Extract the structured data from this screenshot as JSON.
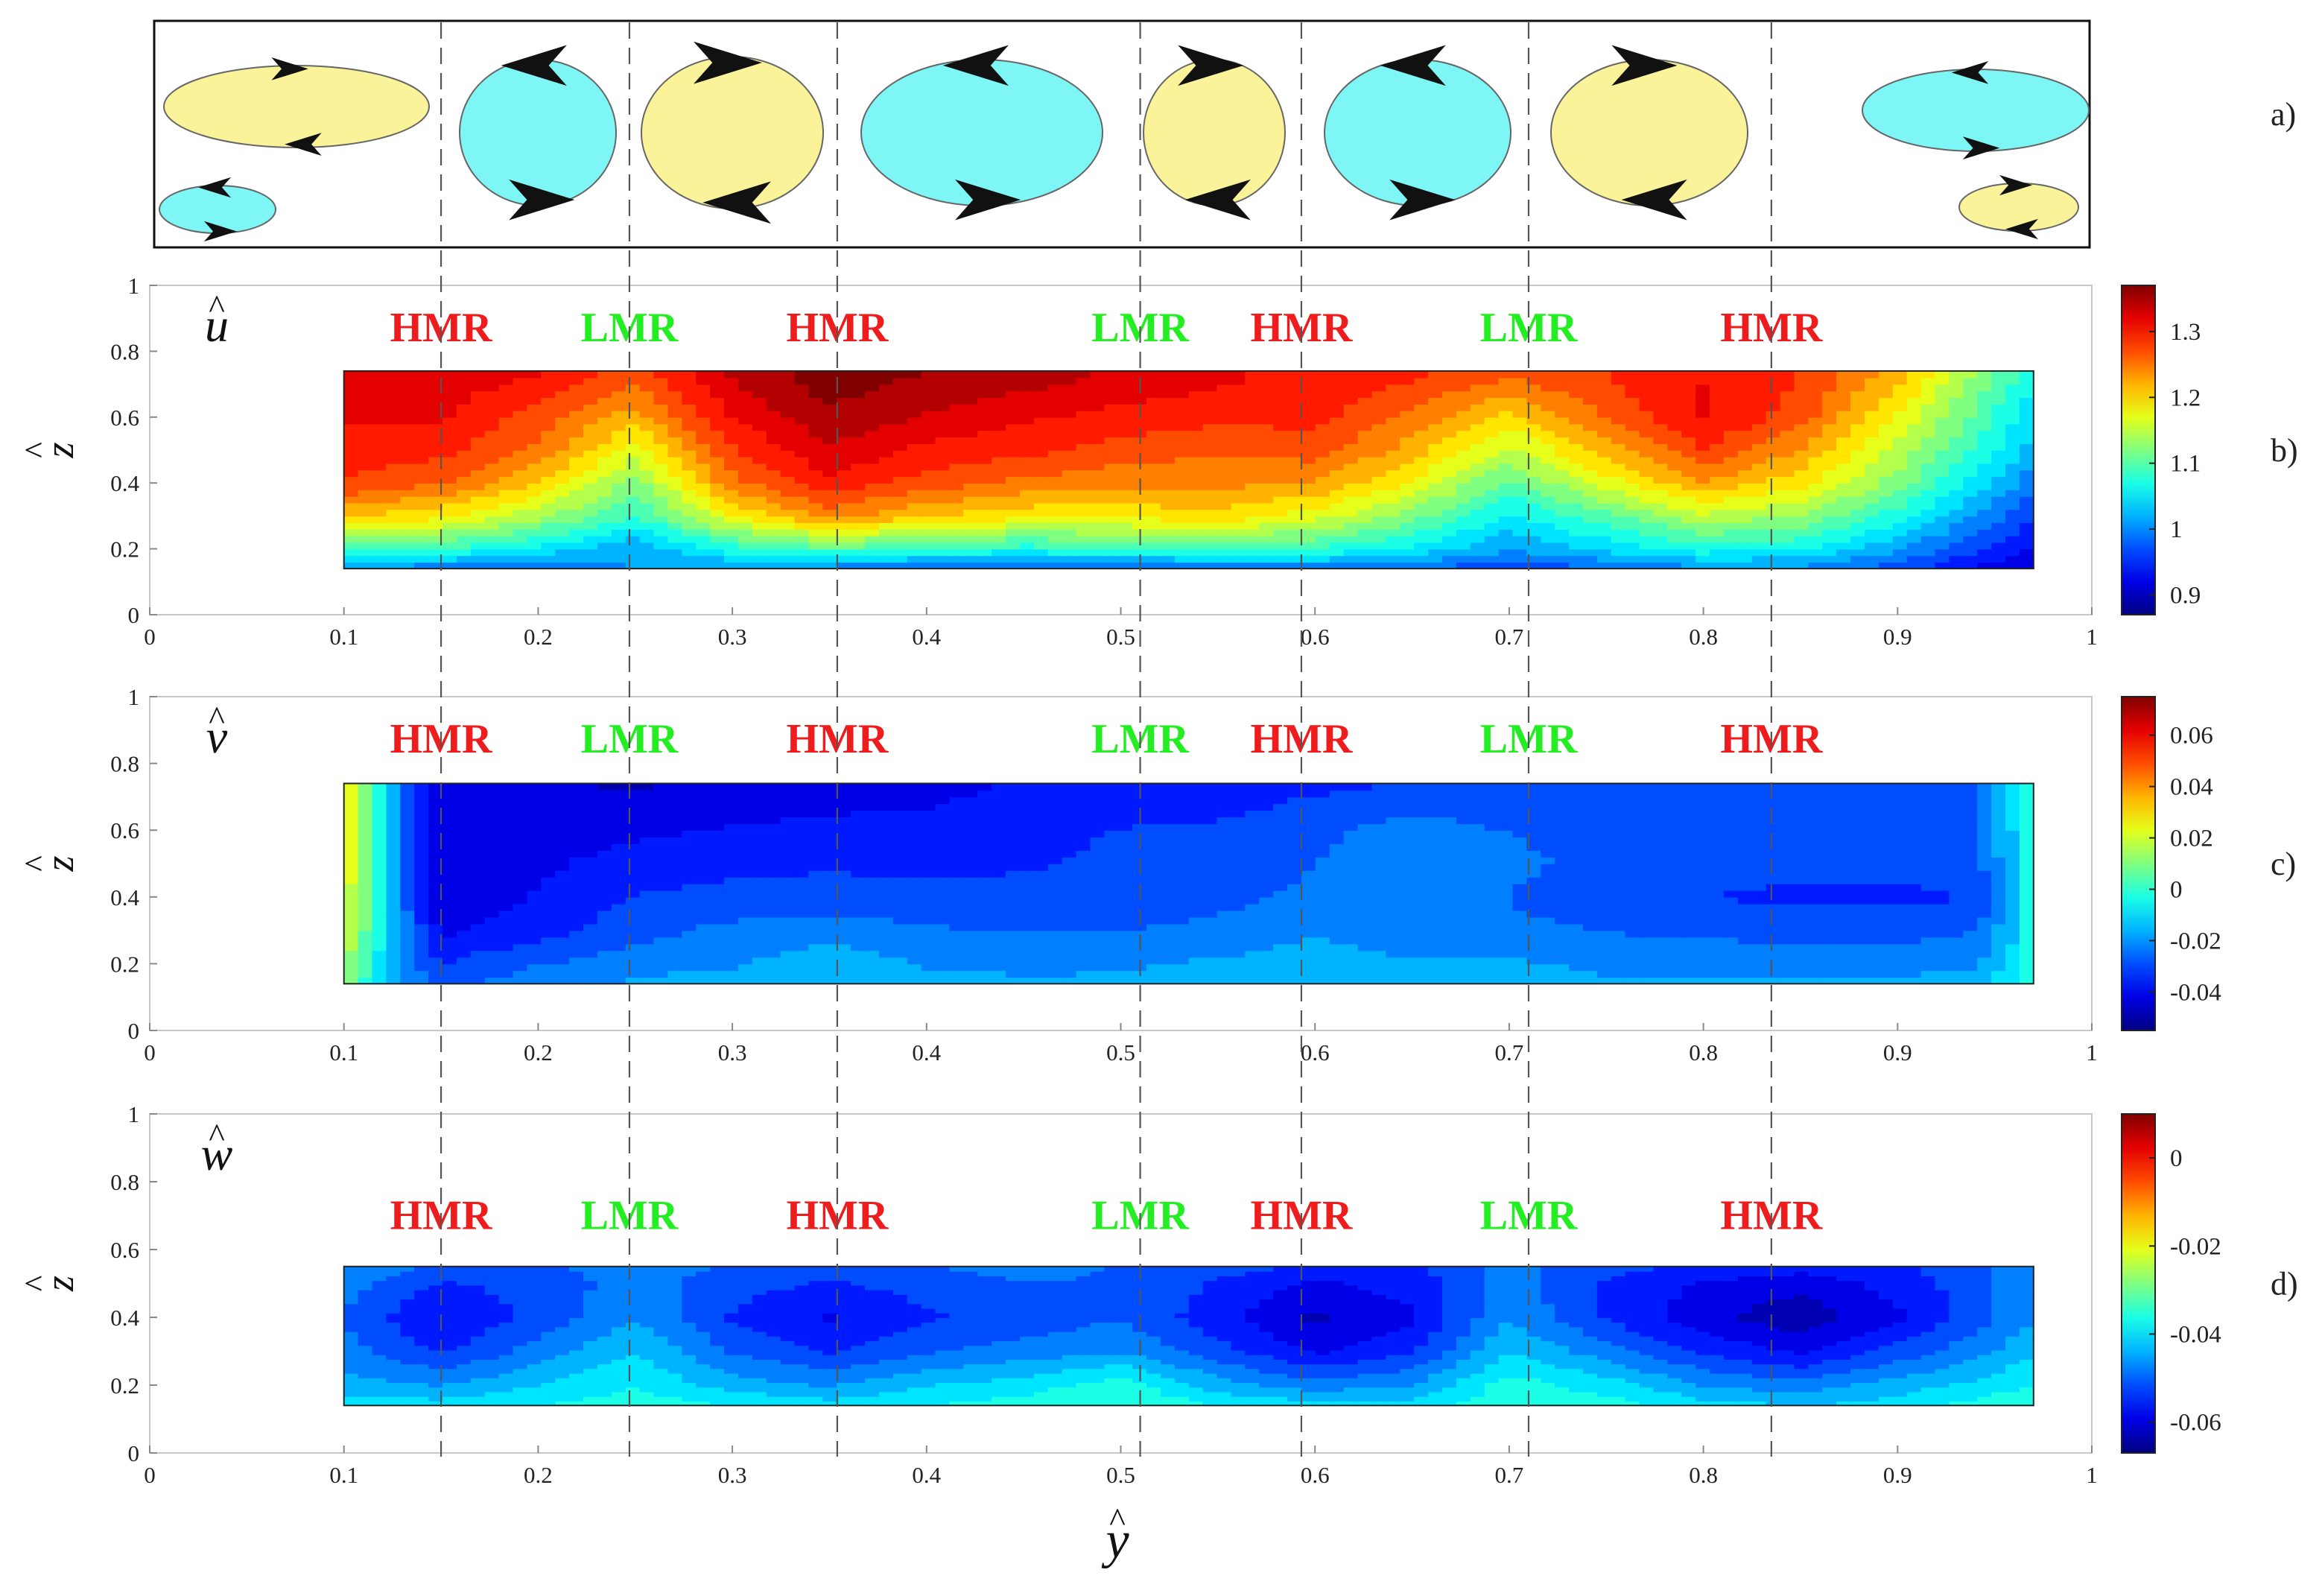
{
  "colors": {
    "hmr": "#ee1c1c",
    "lmr": "#22ee22",
    "vortex_yellow": "#fbf39a",
    "vortex_cyan": "#7ff6f6",
    "divider": "#555555"
  },
  "panel_a": {
    "label": "a)",
    "vortices": [
      {
        "color": "yellow",
        "rotation": "clockwise"
      },
      {
        "color": "cyan",
        "rotation": "counterclockwise"
      },
      {
        "color": "cyan",
        "rotation": "counterclockwise"
      },
      {
        "color": "yellow",
        "rotation": "clockwise"
      },
      {
        "color": "cyan",
        "rotation": "counterclockwise"
      },
      {
        "color": "yellow",
        "rotation": "clockwise"
      },
      {
        "color": "cyan",
        "rotation": "counterclockwise"
      },
      {
        "color": "yellow",
        "rotation": "clockwise"
      },
      {
        "color": "cyan",
        "rotation": "counterclockwise"
      },
      {
        "color": "yellow",
        "rotation": "clockwise"
      }
    ]
  },
  "xlabel": "y",
  "ylabel": "z",
  "chart_data": [
    {
      "type": "heatmap",
      "panel": "b)",
      "variable": "u",
      "colormap": "jet",
      "x_ticks": [
        "0",
        "0.1",
        "0.2",
        "0.3",
        "0.4",
        "0.5",
        "0.6",
        "0.7",
        "0.8",
        "0.9",
        "1"
      ],
      "y_ticks": [
        "0",
        "0.2",
        "0.4",
        "0.6",
        "0.8",
        "1"
      ],
      "xlim": [
        0,
        1
      ],
      "ylim": [
        0,
        1
      ],
      "data_extent": {
        "y": [
          0.1,
          0.97
        ],
        "z": [
          0.14,
          0.74
        ]
      },
      "colorbar": {
        "range": [
          0.87,
          1.37
        ],
        "ticks": [
          "0.9",
          "1",
          "1.1",
          "1.2",
          "1.3"
        ],
        "tick_values": [
          0.9,
          1.0,
          1.1,
          1.2,
          1.3
        ]
      },
      "region_labels": [
        {
          "text": "HMR",
          "type": "hmr",
          "y": 0.15
        },
        {
          "text": "LMR",
          "type": "lmr",
          "y": 0.247
        },
        {
          "text": "HMR",
          "type": "hmr",
          "y": 0.354
        },
        {
          "text": "LMR",
          "type": "lmr",
          "y": 0.51
        },
        {
          "text": "HMR",
          "type": "hmr",
          "y": 0.593
        },
        {
          "text": "LMR",
          "type": "lmr",
          "y": 0.71
        },
        {
          "text": "HMR",
          "type": "hmr",
          "y": 0.835
        }
      ],
      "field": {
        "y": [
          0.1,
          0.15,
          0.2,
          0.25,
          0.3,
          0.35,
          0.4,
          0.45,
          0.5,
          0.55,
          0.6,
          0.65,
          0.7,
          0.75,
          0.8,
          0.85,
          0.9,
          0.95,
          0.97
        ],
        "z": [
          0.14,
          0.2,
          0.3,
          0.4,
          0.5,
          0.6,
          0.7,
          0.74
        ],
        "values": [
          [
            1.0,
            0.99,
            0.98,
            1.01,
            1.0,
            0.99,
            0.98,
            0.98,
            0.98,
            0.98,
            0.99,
            0.98,
            0.96,
            0.98,
            1.0,
            1.0,
            0.97,
            0.92,
            0.91
          ],
          [
            1.09,
            1.08,
            1.05,
            1.01,
            1.07,
            1.1,
            1.08,
            1.07,
            1.08,
            1.09,
            1.08,
            1.05,
            1.01,
            1.04,
            1.07,
            1.06,
            1.01,
            0.95,
            0.93
          ],
          [
            1.21,
            1.19,
            1.14,
            1.08,
            1.18,
            1.24,
            1.21,
            1.19,
            1.19,
            1.2,
            1.17,
            1.12,
            1.05,
            1.1,
            1.15,
            1.13,
            1.07,
            0.99,
            0.96
          ],
          [
            1.28,
            1.26,
            1.21,
            1.12,
            1.25,
            1.3,
            1.27,
            1.25,
            1.24,
            1.24,
            1.23,
            1.18,
            1.1,
            1.17,
            1.23,
            1.19,
            1.12,
            1.03,
            0.99
          ],
          [
            1.3,
            1.29,
            1.25,
            1.17,
            1.28,
            1.33,
            1.3,
            1.29,
            1.27,
            1.26,
            1.27,
            1.22,
            1.15,
            1.22,
            1.28,
            1.23,
            1.15,
            1.06,
            1.02
          ],
          [
            1.31,
            1.31,
            1.27,
            1.22,
            1.31,
            1.35,
            1.33,
            1.31,
            1.3,
            1.29,
            1.29,
            1.25,
            1.2,
            1.26,
            1.31,
            1.27,
            1.18,
            1.08,
            1.04
          ],
          [
            1.32,
            1.32,
            1.3,
            1.26,
            1.33,
            1.37,
            1.35,
            1.34,
            1.32,
            1.31,
            1.3,
            1.28,
            1.25,
            1.28,
            1.31,
            1.28,
            1.21,
            1.1,
            1.06
          ],
          [
            1.32,
            1.32,
            1.31,
            1.27,
            1.34,
            1.37,
            1.36,
            1.35,
            1.33,
            1.31,
            1.3,
            1.29,
            1.26,
            1.28,
            1.3,
            1.28,
            1.22,
            1.11,
            1.07
          ]
        ]
      }
    },
    {
      "type": "heatmap",
      "panel": "c)",
      "variable": "v",
      "colormap": "jet",
      "x_ticks": [
        "0",
        "0.1",
        "0.2",
        "0.3",
        "0.4",
        "0.5",
        "0.6",
        "0.7",
        "0.8",
        "0.9",
        "1"
      ],
      "y_ticks": [
        "0",
        "0.2",
        "0.4",
        "0.6",
        "0.8",
        "1"
      ],
      "xlim": [
        0,
        1
      ],
      "ylim": [
        0,
        1
      ],
      "data_extent": {
        "y": [
          0.1,
          0.97
        ],
        "z": [
          0.14,
          0.74
        ]
      },
      "colorbar": {
        "range": [
          -0.055,
          0.075
        ],
        "ticks": [
          "-0.04",
          "-0.02",
          "0",
          "0.02",
          "0.04",
          "0.06"
        ],
        "tick_values": [
          -0.04,
          -0.02,
          0,
          0.02,
          0.04,
          0.06
        ]
      },
      "region_labels": [
        {
          "text": "HMR",
          "type": "hmr",
          "y": 0.15
        },
        {
          "text": "LMR",
          "type": "lmr",
          "y": 0.247
        },
        {
          "text": "HMR",
          "type": "hmr",
          "y": 0.354
        },
        {
          "text": "LMR",
          "type": "lmr",
          "y": 0.51
        },
        {
          "text": "HMR",
          "type": "hmr",
          "y": 0.593
        },
        {
          "text": "LMR",
          "type": "lmr",
          "y": 0.71
        },
        {
          "text": "HMR",
          "type": "hmr",
          "y": 0.835
        }
      ],
      "field": {
        "y": [
          0.1,
          0.11,
          0.12,
          0.135,
          0.15,
          0.2,
          0.25,
          0.3,
          0.35,
          0.4,
          0.45,
          0.5,
          0.55,
          0.6,
          0.65,
          0.7,
          0.75,
          0.8,
          0.85,
          0.9,
          0.94,
          0.96,
          0.97
        ],
        "z": [
          0.14,
          0.2,
          0.3,
          0.4,
          0.5,
          0.6,
          0.7,
          0.74
        ],
        "values": [
          [
            0.01,
            0.0,
            -0.012,
            -0.022,
            -0.028,
            -0.022,
            -0.018,
            -0.016,
            -0.014,
            -0.017,
            -0.018,
            -0.018,
            -0.016,
            -0.015,
            -0.017,
            -0.016,
            -0.018,
            -0.018,
            -0.017,
            -0.018,
            -0.016,
            -0.008,
            0.002
          ],
          [
            0.015,
            0.004,
            -0.01,
            -0.024,
            -0.032,
            -0.026,
            -0.022,
            -0.02,
            -0.015,
            -0.02,
            -0.021,
            -0.02,
            -0.018,
            -0.016,
            -0.019,
            -0.018,
            -0.021,
            -0.022,
            -0.022,
            -0.022,
            -0.02,
            -0.01,
            0.004
          ],
          [
            0.02,
            0.008,
            -0.008,
            -0.028,
            -0.04,
            -0.035,
            -0.028,
            -0.024,
            -0.022,
            -0.025,
            -0.026,
            -0.026,
            -0.024,
            -0.02,
            -0.022,
            -0.024,
            -0.026,
            -0.027,
            -0.028,
            -0.028,
            -0.026,
            -0.014,
            0.004
          ],
          [
            0.024,
            0.01,
            -0.006,
            -0.03,
            -0.044,
            -0.038,
            -0.032,
            -0.03,
            -0.03,
            -0.03,
            -0.03,
            -0.029,
            -0.028,
            -0.024,
            -0.022,
            -0.026,
            -0.03,
            -0.032,
            -0.034,
            -0.034,
            -0.032,
            -0.016,
            0.006
          ],
          [
            0.026,
            0.012,
            -0.006,
            -0.03,
            -0.044,
            -0.04,
            -0.036,
            -0.034,
            -0.033,
            -0.034,
            -0.033,
            -0.031,
            -0.03,
            -0.026,
            -0.02,
            -0.024,
            -0.028,
            -0.03,
            -0.03,
            -0.03,
            -0.028,
            -0.014,
            0.006
          ],
          [
            0.026,
            0.012,
            -0.006,
            -0.03,
            -0.044,
            -0.042,
            -0.04,
            -0.038,
            -0.036,
            -0.036,
            -0.034,
            -0.032,
            -0.031,
            -0.028,
            -0.022,
            -0.026,
            -0.028,
            -0.028,
            -0.029,
            -0.028,
            -0.026,
            -0.012,
            0.006
          ],
          [
            0.026,
            0.012,
            -0.006,
            -0.03,
            -0.044,
            -0.044,
            -0.044,
            -0.043,
            -0.042,
            -0.04,
            -0.037,
            -0.036,
            -0.035,
            -0.032,
            -0.03,
            -0.031,
            -0.031,
            -0.031,
            -0.03,
            -0.028,
            -0.026,
            -0.012,
            0.006
          ],
          [
            0.026,
            0.012,
            -0.006,
            -0.03,
            -0.044,
            -0.045,
            -0.046,
            -0.045,
            -0.044,
            -0.042,
            -0.038,
            -0.037,
            -0.036,
            -0.034,
            -0.032,
            -0.032,
            -0.032,
            -0.032,
            -0.03,
            -0.028,
            -0.026,
            -0.012,
            0.006
          ]
        ]
      }
    },
    {
      "type": "heatmap",
      "panel": "d)",
      "variable": "w",
      "colormap": "jet",
      "x_ticks": [
        "0",
        "0.1",
        "0.2",
        "0.3",
        "0.4",
        "0.5",
        "0.6",
        "0.7",
        "0.8",
        "0.9",
        "1"
      ],
      "y_ticks": [
        "0",
        "0.2",
        "0.4",
        "0.6",
        "0.8",
        "1"
      ],
      "xlim": [
        0,
        1
      ],
      "ylim": [
        0,
        1
      ],
      "data_extent": {
        "y": [
          0.1,
          0.97
        ],
        "z": [
          0.14,
          0.55
        ]
      },
      "colorbar": {
        "range": [
          -0.067,
          0.01
        ],
        "ticks": [
          "-0.06",
          "-0.04",
          "-0.02",
          "0"
        ],
        "tick_values": [
          -0.06,
          -0.04,
          -0.02,
          0
        ]
      },
      "region_labels": [
        {
          "text": "HMR",
          "type": "hmr",
          "y": 0.15
        },
        {
          "text": "LMR",
          "type": "lmr",
          "y": 0.247
        },
        {
          "text": "HMR",
          "type": "hmr",
          "y": 0.354
        },
        {
          "text": "LMR",
          "type": "lmr",
          "y": 0.51
        },
        {
          "text": "HMR",
          "type": "hmr",
          "y": 0.593
        },
        {
          "text": "LMR",
          "type": "lmr",
          "y": 0.71
        },
        {
          "text": "HMR",
          "type": "hmr",
          "y": 0.835
        }
      ],
      "field": {
        "y": [
          0.1,
          0.15,
          0.2,
          0.25,
          0.3,
          0.35,
          0.4,
          0.45,
          0.5,
          0.55,
          0.6,
          0.65,
          0.7,
          0.75,
          0.8,
          0.85,
          0.9,
          0.95,
          0.97
        ],
        "z": [
          0.14,
          0.2,
          0.3,
          0.4,
          0.5,
          0.55
        ],
        "values": [
          [
            -0.04,
            -0.04,
            -0.038,
            -0.036,
            -0.038,
            -0.04,
            -0.038,
            -0.036,
            -0.034,
            -0.038,
            -0.04,
            -0.04,
            -0.035,
            -0.036,
            -0.04,
            -0.042,
            -0.04,
            -0.036,
            -0.034
          ],
          [
            -0.044,
            -0.046,
            -0.042,
            -0.038,
            -0.044,
            -0.046,
            -0.042,
            -0.04,
            -0.036,
            -0.044,
            -0.048,
            -0.046,
            -0.036,
            -0.04,
            -0.046,
            -0.048,
            -0.044,
            -0.04,
            -0.038
          ],
          [
            -0.048,
            -0.054,
            -0.048,
            -0.042,
            -0.05,
            -0.054,
            -0.05,
            -0.048,
            -0.046,
            -0.052,
            -0.058,
            -0.054,
            -0.042,
            -0.048,
            -0.054,
            -0.058,
            -0.052,
            -0.046,
            -0.042
          ],
          [
            -0.05,
            -0.058,
            -0.052,
            -0.046,
            -0.054,
            -0.058,
            -0.054,
            -0.052,
            -0.05,
            -0.056,
            -0.062,
            -0.058,
            -0.046,
            -0.054,
            -0.06,
            -0.064,
            -0.058,
            -0.05,
            -0.046
          ],
          [
            -0.048,
            -0.054,
            -0.052,
            -0.048,
            -0.052,
            -0.054,
            -0.052,
            -0.05,
            -0.05,
            -0.054,
            -0.058,
            -0.056,
            -0.048,
            -0.054,
            -0.058,
            -0.06,
            -0.056,
            -0.05,
            -0.046
          ],
          [
            -0.046,
            -0.05,
            -0.05,
            -0.048,
            -0.05,
            -0.05,
            -0.05,
            -0.048,
            -0.05,
            -0.052,
            -0.054,
            -0.054,
            -0.048,
            -0.052,
            -0.054,
            -0.056,
            -0.054,
            -0.05,
            -0.046
          ]
        ]
      }
    }
  ]
}
